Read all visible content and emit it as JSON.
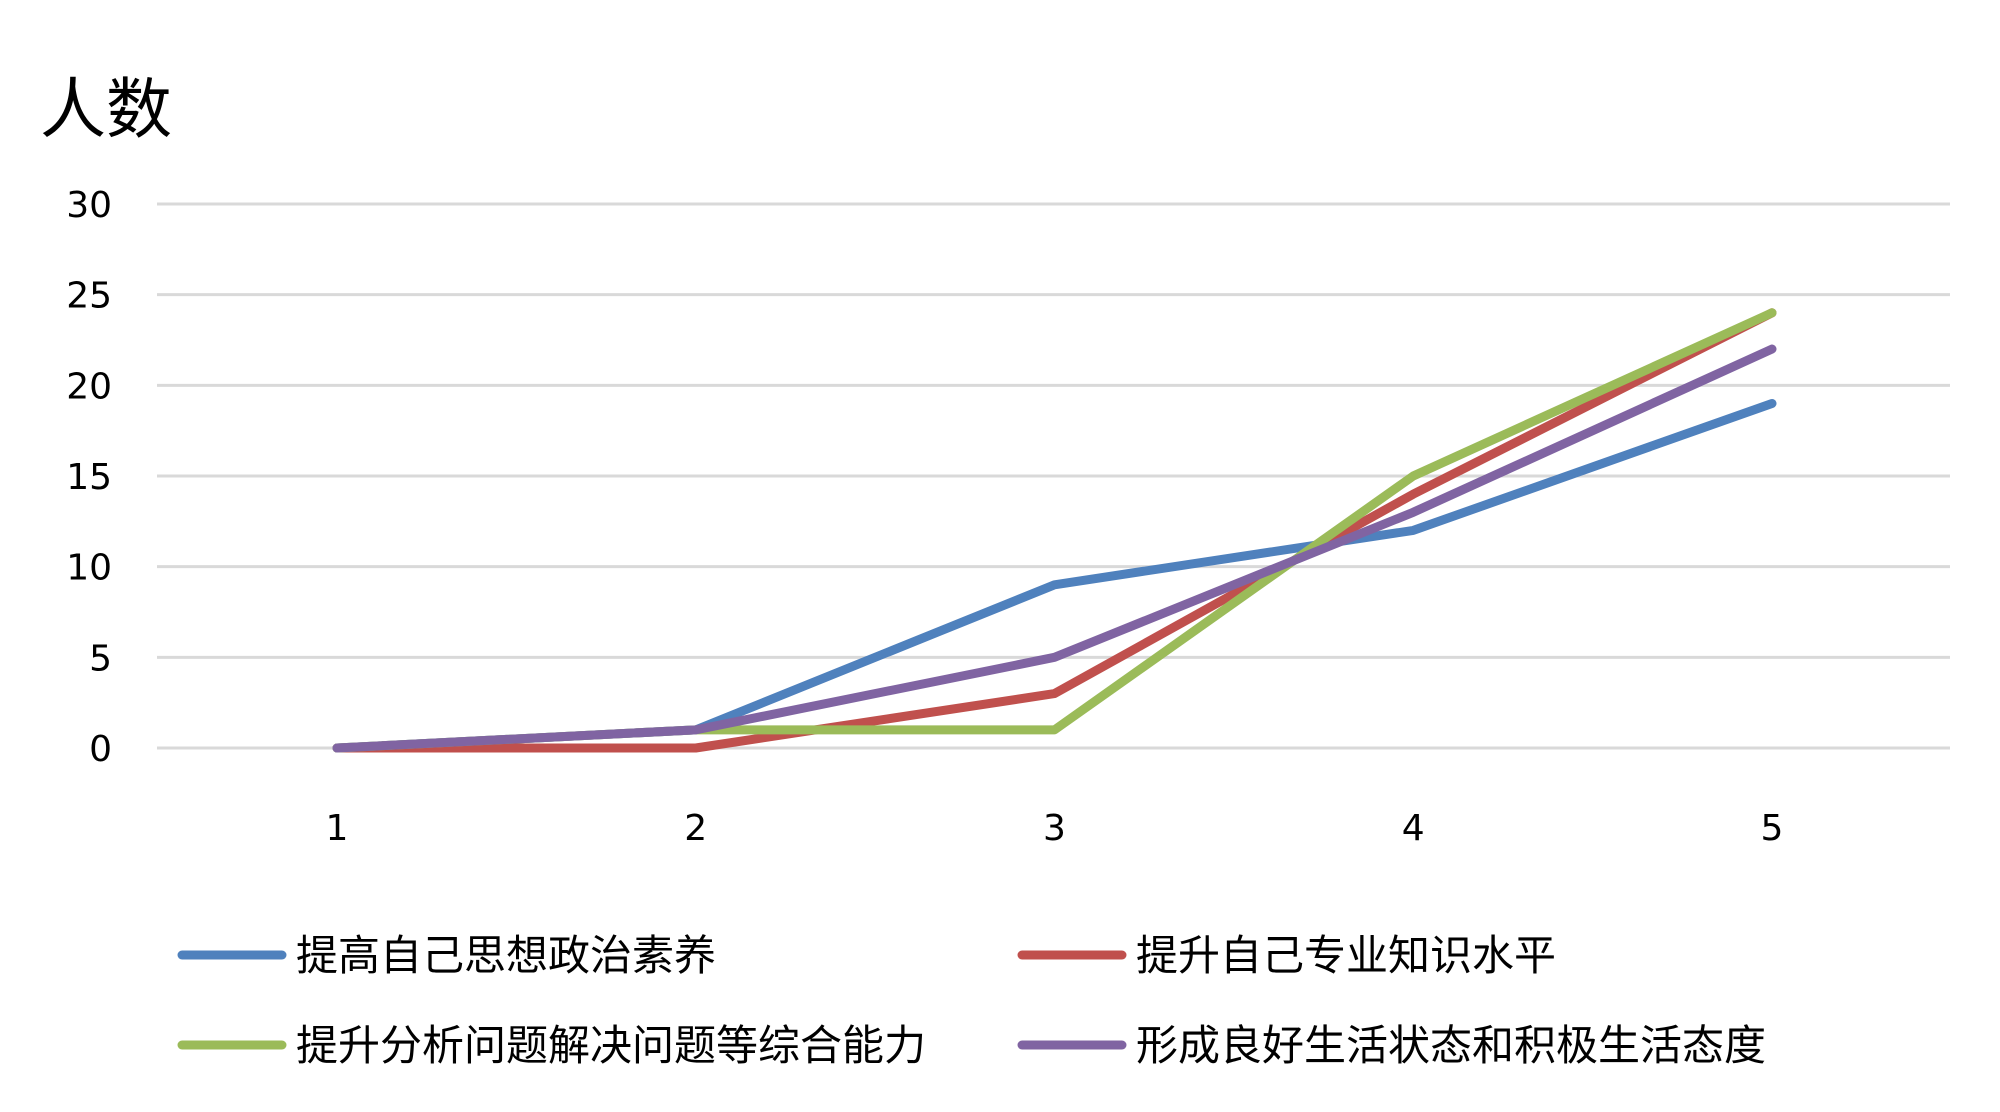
{
  "chart_data": {
    "type": "line",
    "ylabel": "人数",
    "xlabel": "",
    "x": [
      1,
      2,
      3,
      4,
      5
    ],
    "x_tick_labels": [
      "1",
      "2",
      "3",
      "4",
      "5"
    ],
    "ylim": [
      0,
      30
    ],
    "y_ticks": [
      0,
      5,
      10,
      15,
      20,
      25,
      30
    ],
    "y_tick_labels": [
      "0",
      "5",
      "10",
      "15",
      "20",
      "25",
      "30"
    ],
    "grid": true,
    "legend_position": "bottom",
    "series": [
      {
        "name": "提高自己思想政治素养",
        "color": "#4f81bd",
        "values": [
          0,
          1,
          9,
          12,
          19
        ]
      },
      {
        "name": "提升自己专业知识水平",
        "color": "#c0504d",
        "values": [
          0,
          0,
          3,
          14,
          24
        ]
      },
      {
        "name": "提升分析问题解决问题等综合能力",
        "color": "#9bbb59",
        "values": [
          0,
          1,
          1,
          15,
          24
        ]
      },
      {
        "name": "形成良好生活状态和积极生活态度",
        "color": "#8064a2",
        "values": [
          0,
          1,
          5,
          13,
          22
        ]
      }
    ]
  }
}
